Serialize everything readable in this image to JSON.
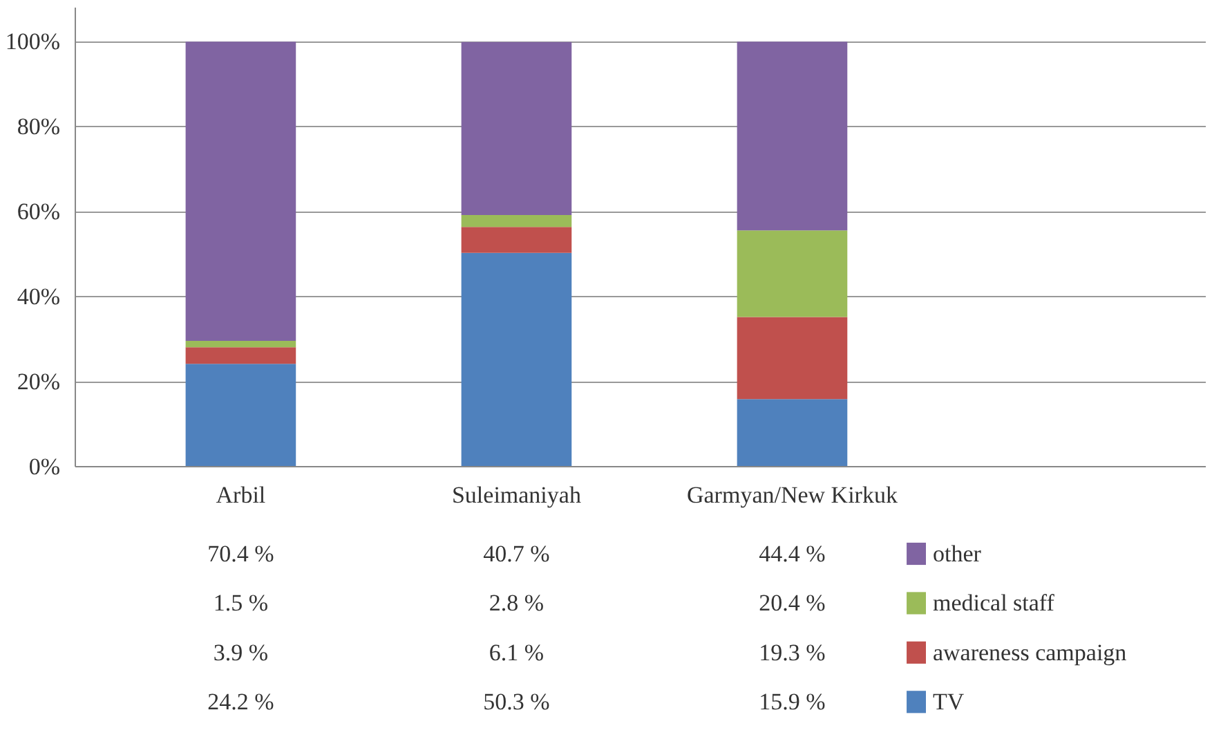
{
  "chart_data": {
    "type": "bar",
    "stacked": true,
    "categories": [
      "Arbil",
      "Suleimaniyah",
      "Garmyan/New Kirkuk"
    ],
    "ylim": [
      0,
      100
    ],
    "yticks": [
      {
        "value": 0,
        "label": "0%"
      },
      {
        "value": 20,
        "label": "20%"
      },
      {
        "value": 40,
        "label": "40%"
      },
      {
        "value": 60,
        "label": "60%"
      },
      {
        "value": 80,
        "label": "80%"
      },
      {
        "value": 100,
        "label": "100%"
      }
    ],
    "grid": "y",
    "legend": "bottom right",
    "series": [
      {
        "name": "TV",
        "color": "#4f81bd",
        "values": [
          24.2,
          50.3,
          15.9
        ],
        "value_labels": [
          "24.2 %",
          "50.3 %",
          "15.9 %"
        ]
      },
      {
        "name": "awareness campaign",
        "color": "#c0504d",
        "values": [
          3.9,
          6.1,
          19.3
        ],
        "value_labels": [
          "3.9 %",
          "6.1 %",
          "19.3 %"
        ]
      },
      {
        "name": "medical staff",
        "color": "#9bbb59",
        "values": [
          1.5,
          2.8,
          20.4
        ],
        "value_labels": [
          "1.5 %",
          "2.8 %",
          "20.4 %"
        ]
      },
      {
        "name": "other",
        "color": "#8064a2",
        "values": [
          70.4,
          40.7,
          44.4
        ],
        "value_labels": [
          "70.4 %",
          "40.7 %",
          "44.4 %"
        ]
      }
    ]
  }
}
